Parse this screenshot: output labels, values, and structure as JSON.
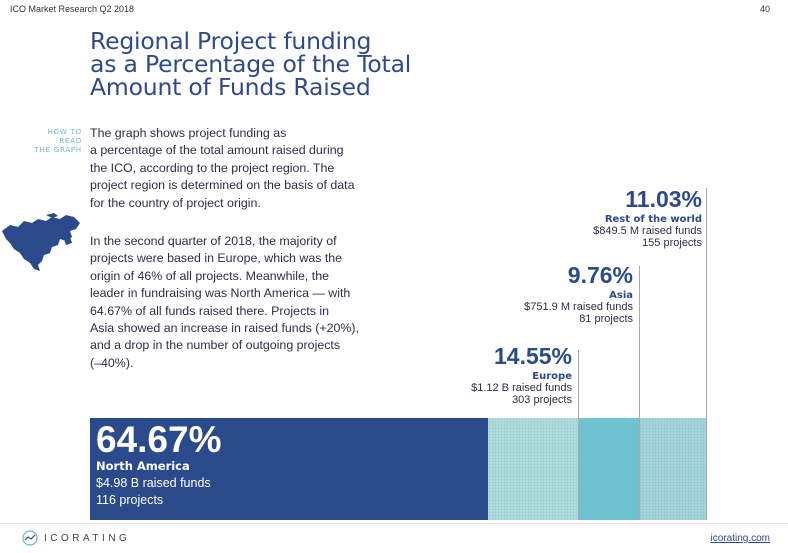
{
  "header": {
    "report": "ICO Market Research Q2 2018",
    "page_number": "40"
  },
  "title_lines": [
    "Regional Project funding",
    "as a Percentage of the Total",
    "Amount of Funds Raised"
  ],
  "how_to_read": [
    "HOW TO READ",
    "THE GRAPH"
  ],
  "paragraph1": [
    "The graph shows project funding as",
    "a percentage of the total amount raised during",
    "the ICO, according to the project region. The",
    "project region is determined on the basis of data",
    "for the country of project origin."
  ],
  "paragraph2": [
    "In the second quarter of 2018,  the majority of",
    "projects were based in Europe, which was the",
    "origin of 46% of all projects. Meanwhile, the",
    "leader in fundraising was North America — with",
    "64.67% of all funds raised there. Projects in",
    "Asia showed an increase in raised funds (+20%),",
    "and a drop in the number of outgoing projects",
    "(–40%)."
  ],
  "icons": {
    "map": "north-america-map-icon",
    "logo": "icorating-logo-icon"
  },
  "colors": {
    "north_america": "#2b4a8c",
    "europe": "#b3dcdd",
    "asia": "#6fc2cf",
    "rest_of_world": "#a8d5dc",
    "title": "#2e4a8b"
  },
  "chart_data": {
    "type": "bar",
    "stacked": true,
    "categories": [
      "North America",
      "Europe",
      "Asia",
      "Rest of the world"
    ],
    "values": [
      64.67,
      14.55,
      9.76,
      11.03
    ],
    "percent_labels": [
      "64.67%",
      "14.55%",
      "9.76%",
      "11.03%"
    ],
    "funds_labels": [
      "$4.98 B raised funds",
      "$1.12 B raised funds",
      "$751.9 M raised funds",
      "$849.5 M raised funds"
    ],
    "projects_labels": [
      "116 projects",
      "303 projects",
      "81 projects",
      "155 projects"
    ]
  },
  "footer": {
    "brand": "ICORATING",
    "site": "icorating.com"
  }
}
